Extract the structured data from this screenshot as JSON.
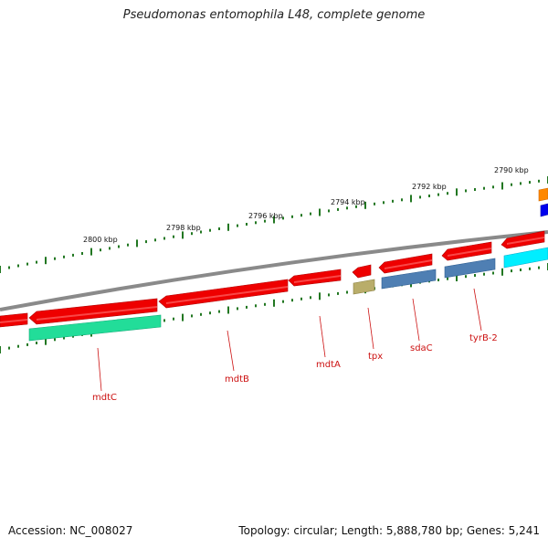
{
  "title": "Pseudomonas entomophila L48, complete genome",
  "footer": {
    "accession": "Accession: NC_008027",
    "summary": "Topology: circular; Length: 5,888,780 bp; Genes: 5,241"
  },
  "scale_labels": [
    "2790 kbp",
    "2792 kbp",
    "2794 kbp",
    "2796 kbp",
    "2798 kbp",
    "2800 kbp"
  ],
  "gene_labels": [
    "mdtC",
    "mdtB",
    "mdtA",
    "tpx",
    "sdaC",
    "tyrB-2"
  ],
  "colors": {
    "gene_red": "#ee0000",
    "mint": "#22dd99",
    "olive": "#b9ad6a",
    "steel_blue": "#4f7fb3",
    "cyan": "#00eeff",
    "orange": "#ff8800",
    "blue": "#0000ee",
    "backbone": "#888888",
    "tick_green": "#227722",
    "label_red": "#cc1111"
  }
}
